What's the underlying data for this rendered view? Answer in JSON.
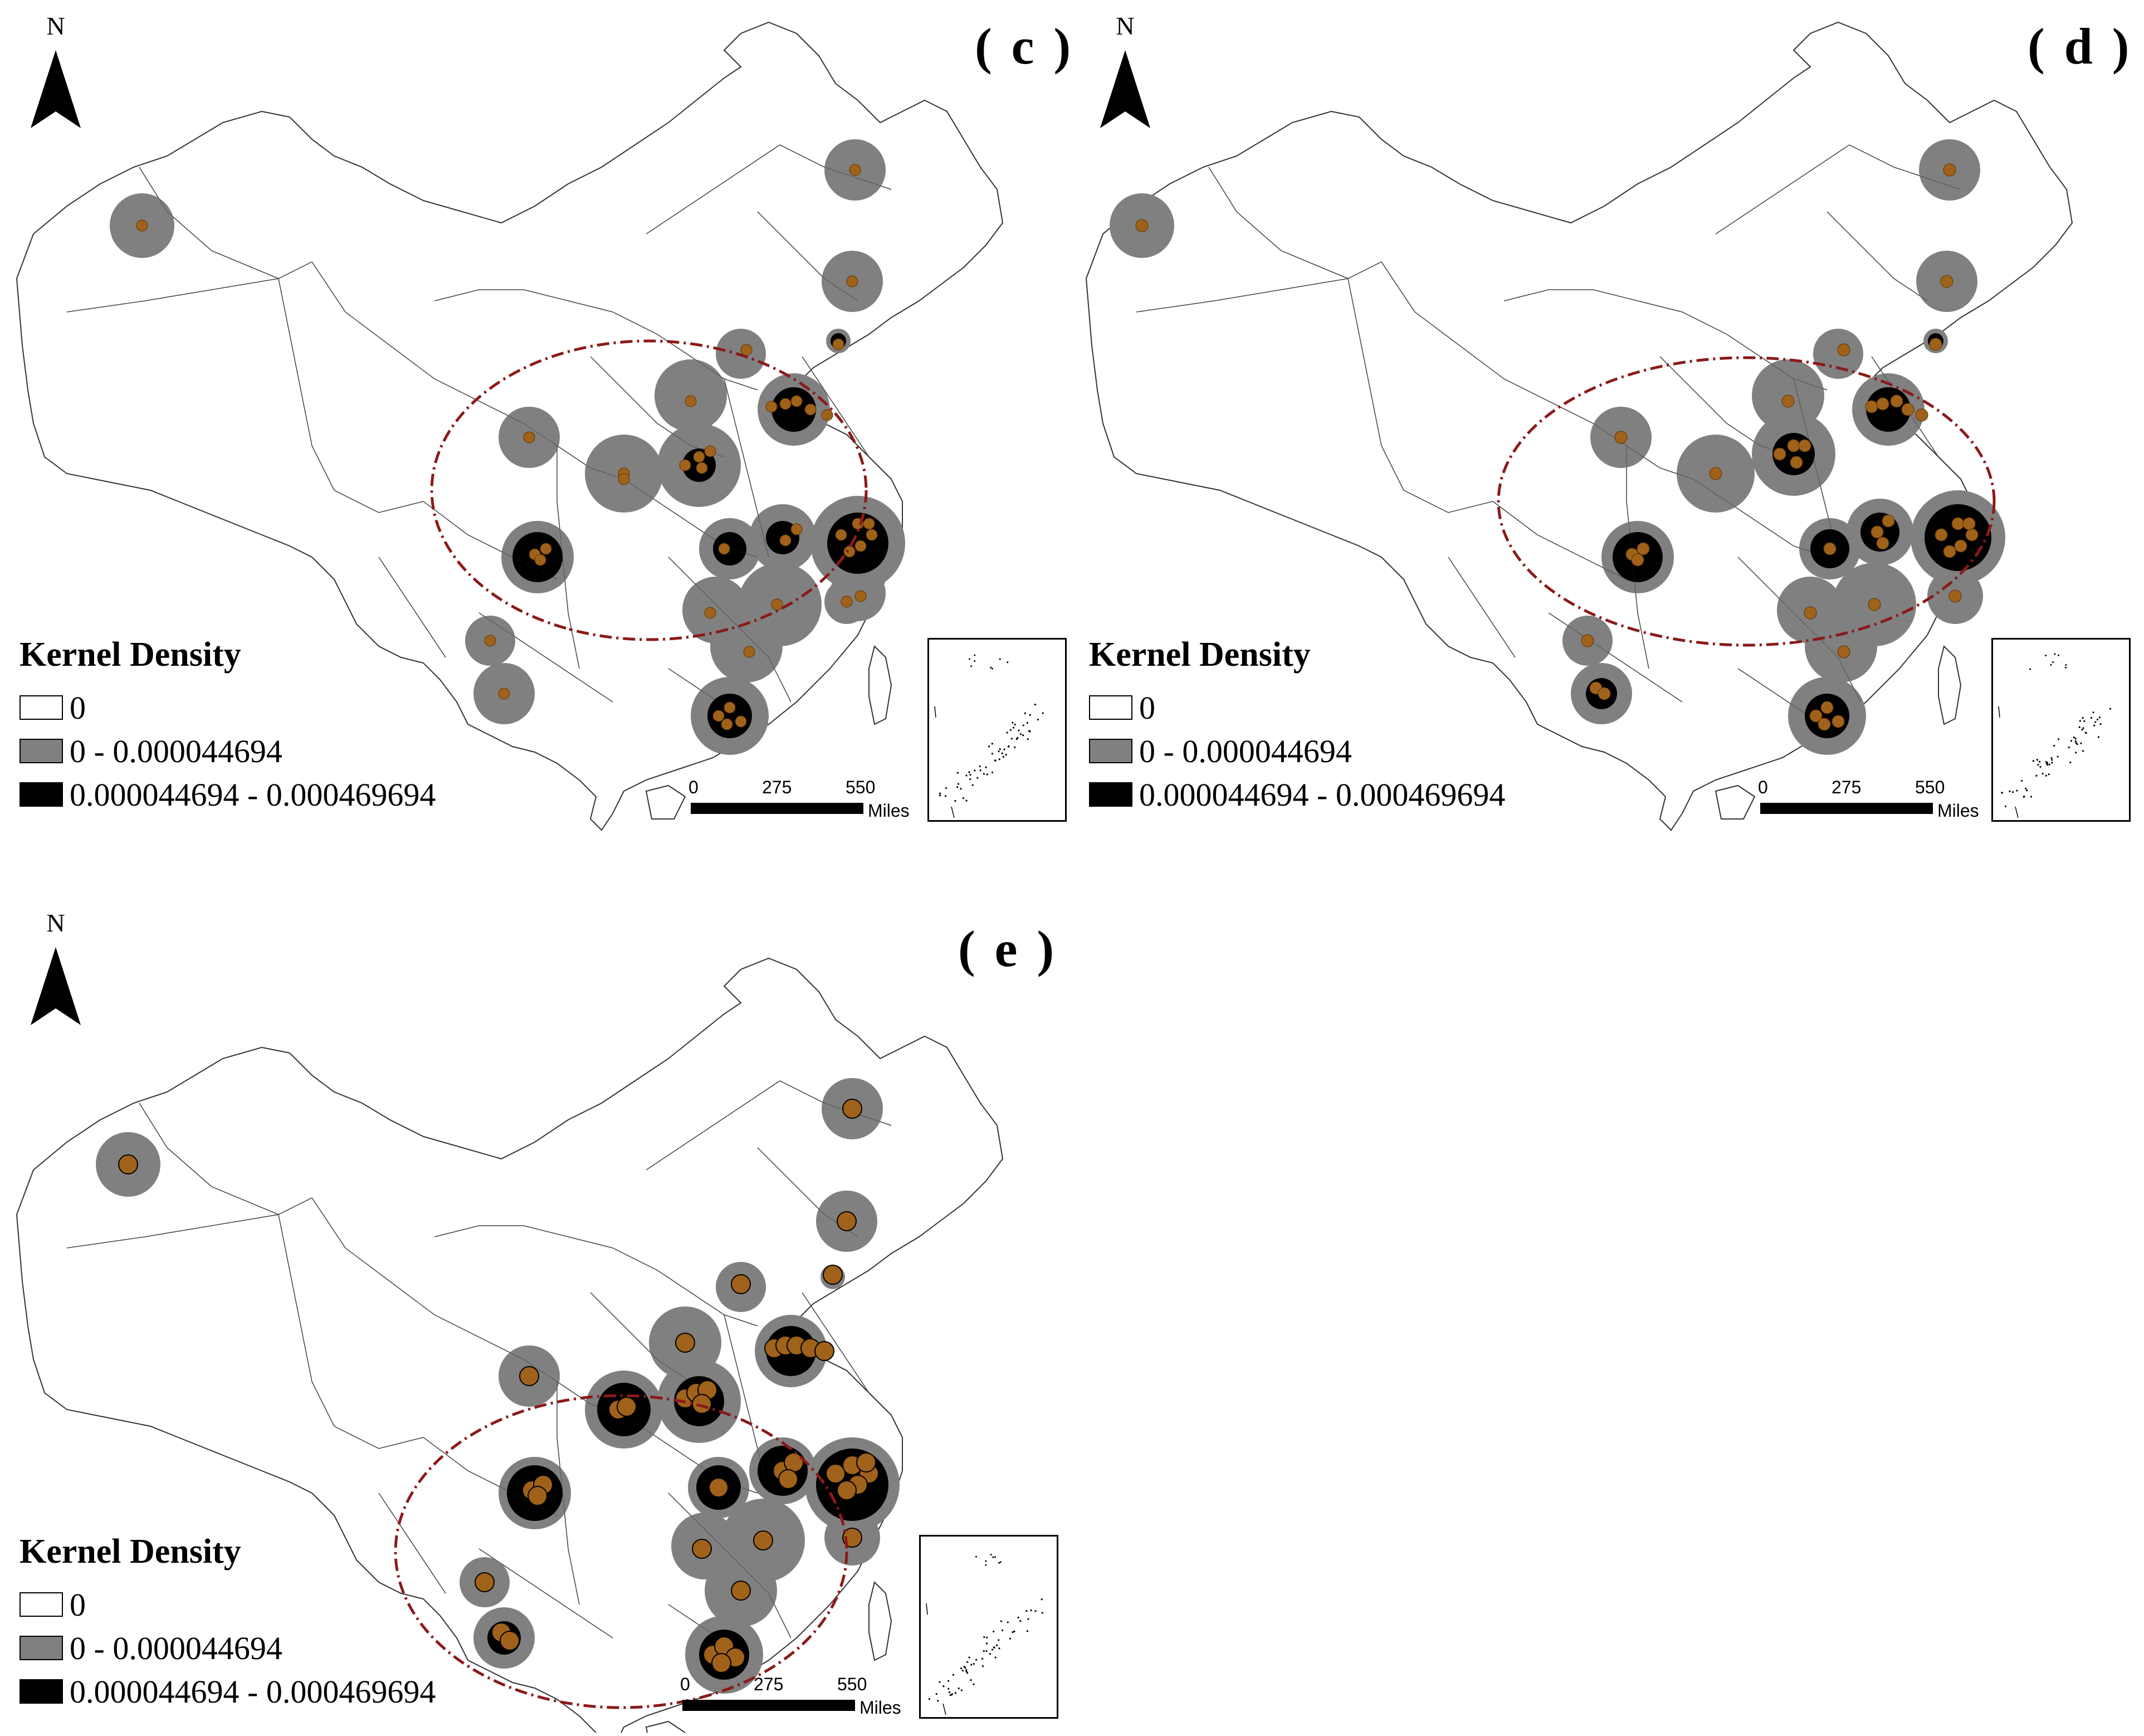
{
  "north_label": "N",
  "legend": {
    "title": "Kernel Density",
    "items": [
      {
        "label": "0",
        "color": "#ffffff"
      },
      {
        "label": "0 - 0.000044694",
        "color": "#808080"
      },
      {
        "label": "0.000044694 - 0.000469694",
        "color": "#000000"
      }
    ]
  },
  "scale_bar": {
    "ticks": [
      "0",
      "275",
      "550"
    ],
    "unit": "Miles"
  },
  "panels": [
    {
      "label": "( c )"
    },
    {
      "label": "( d )"
    },
    {
      "label": "( e )"
    }
  ],
  "colors": {
    "point": "#a0621a",
    "point_outline": "#5a3200",
    "ellipse": "#8b1a1a",
    "low_density": "#808080",
    "high_density": "#000000"
  }
}
